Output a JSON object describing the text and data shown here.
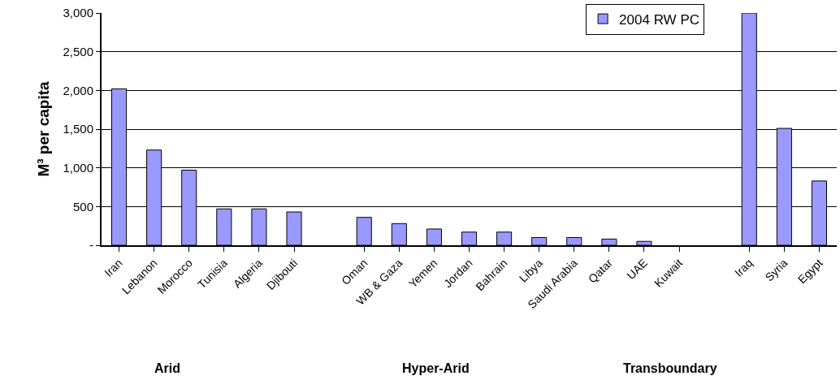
{
  "chart_data": {
    "type": "bar",
    "ylabel": "M³ per capita",
    "categories": [
      "Iran",
      "Lebanon",
      "Morocco",
      "Tunisia",
      "Algeria",
      "Djibouti",
      null,
      "Oman",
      "WB & Gaza",
      "Yemen",
      "Jordan",
      "Bahrain",
      "Libya",
      "Saudi Arabia",
      "Qatar",
      "UAE",
      "Kuwait",
      null,
      "Iraq",
      "Syria",
      "Egypt"
    ],
    "series": [
      {
        "name": "2004 RW PC",
        "color": "#9999ff",
        "values": [
          2020,
          1230,
          970,
          470,
          470,
          430,
          null,
          360,
          280,
          210,
          170,
          170,
          100,
          100,
          80,
          50,
          null,
          null,
          3000,
          1510,
          830
        ]
      }
    ],
    "ylim": [
      0,
      3000
    ],
    "yticks": [
      {
        "value": 0,
        "label": "-"
      },
      500,
      {
        "value": 1000,
        "label": "1,000"
      },
      {
        "value": 1500,
        "label": "1,500"
      },
      {
        "value": 2000,
        "label": "2,000"
      },
      {
        "value": 2500,
        "label": "2,500"
      },
      {
        "value": 3000,
        "label": "3,000"
      }
    ],
    "grid": "y",
    "legend": "top right",
    "annotations": [
      "Arid",
      "Hyper-Arid",
      "Transboundary"
    ]
  }
}
